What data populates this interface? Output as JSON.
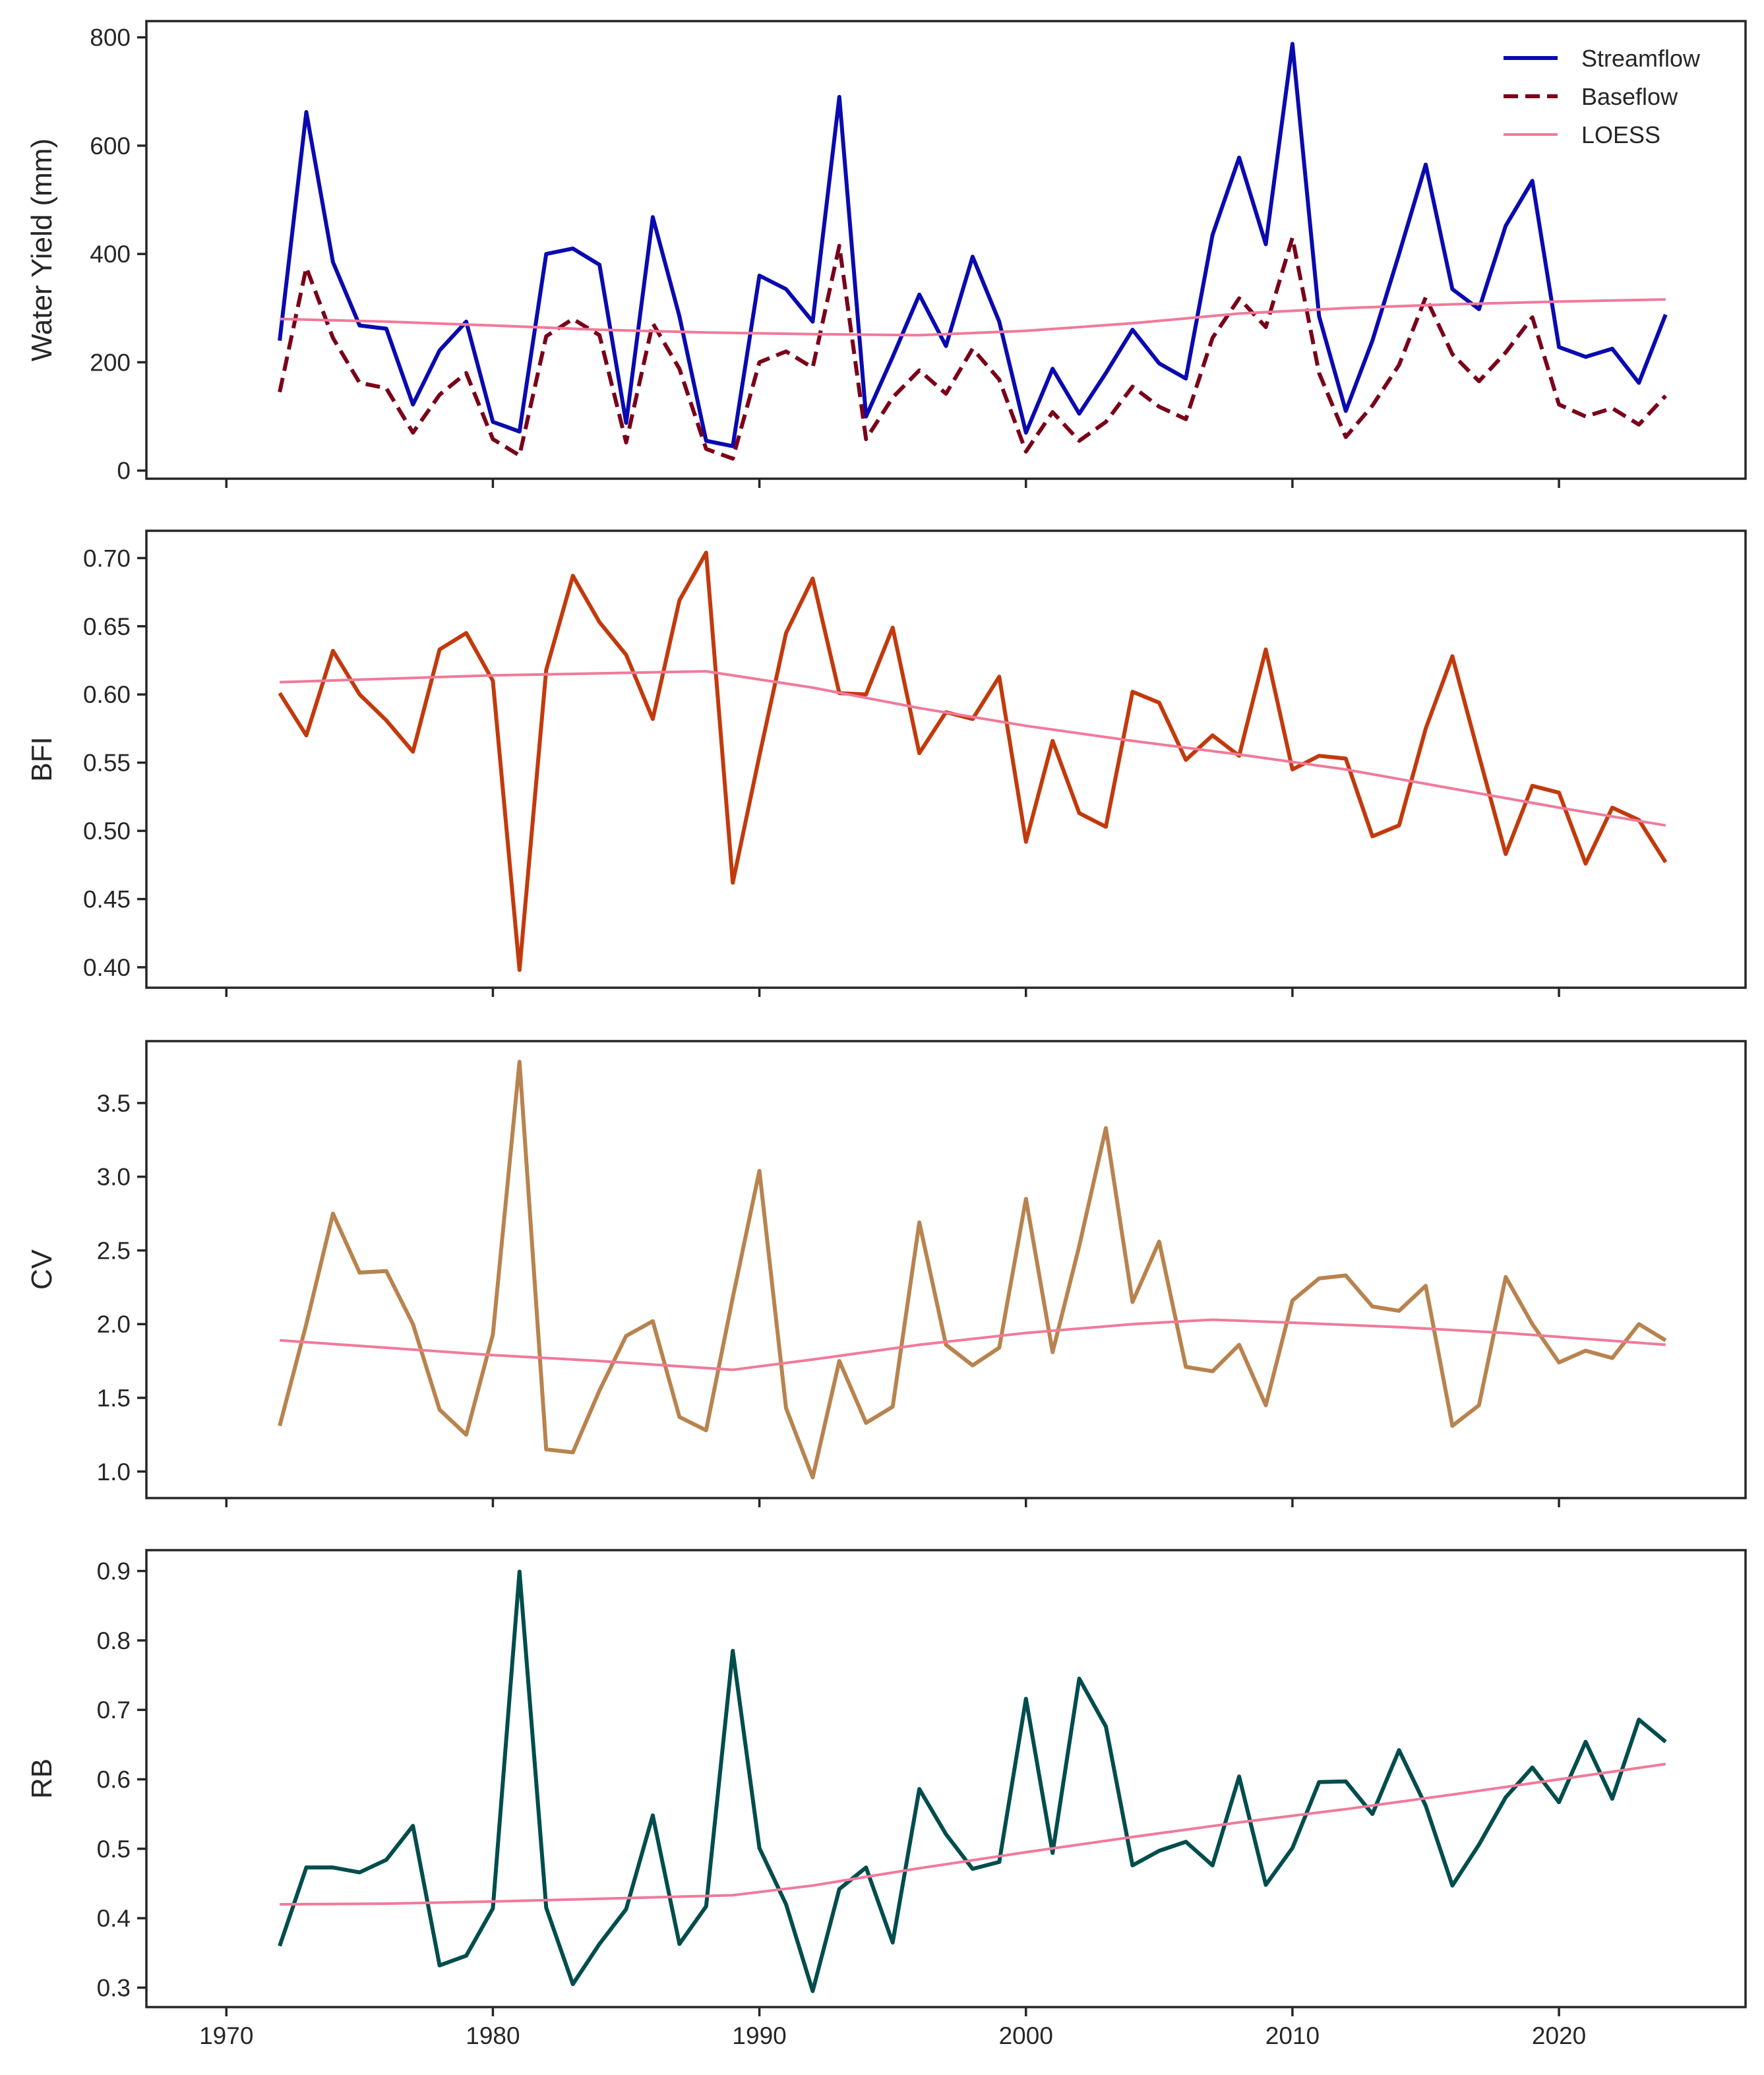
{
  "chart_data": [
    {
      "type": "line",
      "id": "water-yield",
      "ylabel": "Water Yield (mm)",
      "xlim": [
        1967,
        2027
      ],
      "ylim": [
        -15,
        830
      ],
      "yticks": [
        0,
        200,
        400,
        600,
        800
      ],
      "ytick_labels": [
        "0",
        "200",
        "400",
        "600",
        "800"
      ],
      "xticks": [
        1970,
        1980,
        1990,
        2000,
        2010,
        2020
      ],
      "xtick_labels": [
        "",
        "",
        "",
        "",
        "",
        ""
      ],
      "legend_position": "top-right",
      "series": [
        {
          "name": "Streamflow",
          "color": "#0a0ab0",
          "dash": "solid",
          "x": [
            1972,
            1973,
            1974,
            1975,
            1976,
            1977,
            1978,
            1979,
            1980,
            1981,
            1982,
            1983,
            1984,
            1985,
            1986,
            1987,
            1988,
            1989,
            1990,
            1991,
            1992,
            1993,
            1994,
            1995,
            1996,
            1997,
            1998,
            1999,
            2000,
            2001,
            2002,
            2003,
            2004,
            2005,
            2006,
            2007,
            2008,
            2009,
            2010,
            2011,
            2012,
            2013,
            2014,
            2015,
            2016,
            2017,
            2018,
            2019,
            2020,
            2021,
            2022,
            2023,
            2024
          ],
          "values": [
            240,
            662,
            385,
            268,
            262,
            122,
            222,
            275,
            90,
            72,
            400,
            410,
            380,
            88,
            468,
            285,
            55,
            45,
            360,
            335,
            275,
            690,
            100,
            210,
            325,
            230,
            395,
            275,
            70,
            188,
            105,
            180,
            260,
            198,
            170,
            435,
            578,
            418,
            788,
            285,
            110,
            240,
            400,
            565,
            335,
            298,
            452,
            535,
            228,
            210,
            225,
            162,
            288
          ]
        },
        {
          "name": "Baseflow",
          "color": "#7a0019",
          "dash": "dashed",
          "x": [
            1972,
            1973,
            1974,
            1975,
            1976,
            1977,
            1978,
            1979,
            1980,
            1981,
            1982,
            1983,
            1984,
            1985,
            1986,
            1987,
            1988,
            1989,
            1990,
            1991,
            1992,
            1993,
            1994,
            1995,
            1996,
            1997,
            1998,
            1999,
            2000,
            2001,
            2002,
            2003,
            2004,
            2005,
            2006,
            2007,
            2008,
            2009,
            2010,
            2011,
            2012,
            2013,
            2014,
            2015,
            2016,
            2017,
            2018,
            2019,
            2020,
            2021,
            2022,
            2023,
            2024
          ],
          "values": [
            145,
            375,
            245,
            162,
            152,
            70,
            140,
            180,
            58,
            28,
            248,
            280,
            250,
            52,
            272,
            188,
            40,
            22,
            200,
            220,
            190,
            415,
            58,
            135,
            185,
            142,
            225,
            168,
            35,
            108,
            55,
            90,
            155,
            118,
            95,
            245,
            318,
            265,
            430,
            180,
            62,
            120,
            195,
            320,
            215,
            165,
            218,
            283,
            122,
            100,
            115,
            85,
            138
          ]
        },
        {
          "name": "LOESS",
          "color": "#f07a9a",
          "dash": "solid",
          "x": [
            1972,
            1976,
            1980,
            1984,
            1988,
            1992,
            1996,
            2000,
            2004,
            2008,
            2012,
            2016,
            2020,
            2024
          ],
          "values": [
            280,
            275,
            268,
            260,
            255,
            252,
            250,
            258,
            272,
            290,
            300,
            307,
            312,
            316
          ]
        }
      ]
    },
    {
      "type": "line",
      "id": "bfi",
      "ylabel": "BFI",
      "xlim": [
        1967,
        2027
      ],
      "ylim": [
        0.385,
        0.72
      ],
      "yticks": [
        0.4,
        0.45,
        0.5,
        0.55,
        0.6,
        0.65,
        0.7
      ],
      "ytick_labels": [
        "0.40",
        "0.45",
        "0.50",
        "0.55",
        "0.60",
        "0.65",
        "0.70"
      ],
      "xticks": [
        1970,
        1980,
        1990,
        2000,
        2010,
        2020
      ],
      "xtick_labels": [
        "",
        "",
        "",
        "",
        "",
        ""
      ],
      "series": [
        {
          "name": "BFI",
          "color": "#c23a0c",
          "dash": "solid",
          "x": [
            1972,
            1973,
            1974,
            1975,
            1976,
            1977,
            1978,
            1979,
            1980,
            1981,
            1982,
            1983,
            1984,
            1985,
            1986,
            1987,
            1988,
            1989,
            1990,
            1991,
            1992,
            1993,
            1994,
            1995,
            1996,
            1997,
            1998,
            1999,
            2000,
            2001,
            2002,
            2003,
            2004,
            2005,
            2006,
            2007,
            2008,
            2009,
            2010,
            2011,
            2012,
            2013,
            2014,
            2015,
            2016,
            2017,
            2018,
            2019,
            2020,
            2021,
            2022,
            2023,
            2024
          ],
          "values": [
            0.601,
            0.57,
            0.632,
            0.6,
            0.581,
            0.558,
            0.633,
            0.645,
            0.61,
            0.398,
            0.618,
            0.687,
            0.653,
            0.629,
            0.582,
            0.669,
            0.704,
            0.462,
            0.555,
            0.645,
            0.685,
            0.601,
            0.6,
            0.649,
            0.557,
            0.587,
            0.582,
            0.613,
            0.492,
            0.566,
            0.513,
            0.503,
            0.602,
            0.594,
            0.552,
            0.57,
            0.555,
            0.633,
            0.545,
            0.555,
            0.553,
            0.496,
            0.504,
            0.575,
            0.628,
            0.555,
            0.483,
            0.533,
            0.528,
            0.476,
            0.517,
            0.508,
            0.477
          ]
        },
        {
          "name": "LOESS",
          "color": "#f07a9a",
          "dash": "solid",
          "x": [
            1972,
            1980,
            1988,
            1992,
            1996,
            2000,
            2004,
            2008,
            2012,
            2016,
            2020,
            2024
          ],
          "values": [
            0.609,
            0.614,
            0.617,
            0.605,
            0.59,
            0.577,
            0.566,
            0.556,
            0.545,
            0.531,
            0.517,
            0.504
          ]
        }
      ]
    },
    {
      "type": "line",
      "id": "cv",
      "ylabel": "CV",
      "xlim": [
        1967,
        2027
      ],
      "ylim": [
        0.82,
        3.92
      ],
      "yticks": [
        1.0,
        1.5,
        2.0,
        2.5,
        3.0,
        3.5
      ],
      "ytick_labels": [
        "1.0",
        "1.5",
        "2.0",
        "2.5",
        "3.0",
        "3.5"
      ],
      "xticks": [
        1970,
        1980,
        1990,
        2000,
        2010,
        2020
      ],
      "xtick_labels": [
        "",
        "",
        "",
        "",
        "",
        ""
      ],
      "series": [
        {
          "name": "CV",
          "color": "#b8834e",
          "dash": "solid",
          "x": [
            1972,
            1973,
            1974,
            1975,
            1976,
            1977,
            1978,
            1979,
            1980,
            1981,
            1982,
            1983,
            1984,
            1985,
            1986,
            1987,
            1988,
            1989,
            1990,
            1991,
            1992,
            1993,
            1994,
            1995,
            1996,
            1997,
            1998,
            1999,
            2000,
            2001,
            2002,
            2003,
            2004,
            2005,
            2006,
            2007,
            2008,
            2009,
            2010,
            2011,
            2012,
            2013,
            2014,
            2015,
            2016,
            2017,
            2018,
            2019,
            2020,
            2021,
            2022,
            2023,
            2024
          ],
          "values": [
            1.31,
            2.0,
            2.75,
            2.35,
            2.36,
            2.0,
            1.42,
            1.25,
            1.93,
            3.78,
            1.15,
            1.13,
            1.55,
            1.92,
            2.02,
            1.37,
            1.28,
            2.18,
            3.04,
            1.43,
            0.96,
            1.75,
            1.33,
            1.44,
            2.69,
            1.86,
            1.72,
            1.84,
            2.85,
            1.81,
            2.53,
            3.33,
            2.15,
            2.56,
            1.71,
            1.68,
            1.86,
            1.45,
            2.16,
            2.31,
            2.33,
            2.12,
            2.09,
            2.26,
            1.31,
            1.45,
            2.32,
            2.0,
            1.74,
            1.82,
            1.77,
            2.0,
            1.89
          ]
        },
        {
          "name": "LOESS",
          "color": "#f07a9a",
          "dash": "solid",
          "x": [
            1972,
            1976,
            1980,
            1984,
            1989,
            1992,
            1996,
            2000,
            2004,
            2007,
            2010,
            2014,
            2018,
            2024
          ],
          "values": [
            1.89,
            1.84,
            1.79,
            1.75,
            1.69,
            1.76,
            1.86,
            1.94,
            2.0,
            2.03,
            2.01,
            1.98,
            1.94,
            1.86
          ]
        }
      ]
    },
    {
      "type": "line",
      "id": "rb",
      "ylabel": "RB",
      "xlim": [
        1967,
        2027
      ],
      "ylim": [
        0.272,
        0.93
      ],
      "yticks": [
        0.3,
        0.4,
        0.5,
        0.6,
        0.7,
        0.8,
        0.9
      ],
      "ytick_labels": [
        "0.3",
        "0.4",
        "0.5",
        "0.6",
        "0.7",
        "0.8",
        "0.9"
      ],
      "xticks": [
        1970,
        1980,
        1990,
        2000,
        2010,
        2020
      ],
      "xtick_labels": [
        "1970",
        "1980",
        "1990",
        "2000",
        "2010",
        "2020"
      ],
      "series": [
        {
          "name": "RB",
          "color": "#004d4d",
          "dash": "solid",
          "x": [
            1972,
            1973,
            1974,
            1975,
            1976,
            1977,
            1978,
            1979,
            1980,
            1981,
            1982,
            1983,
            1984,
            1985,
            1986,
            1987,
            1988,
            1989,
            1990,
            1991,
            1992,
            1993,
            1994,
            1995,
            1996,
            1997,
            1998,
            1999,
            2000,
            2001,
            2002,
            2003,
            2004,
            2005,
            2006,
            2007,
            2008,
            2009,
            2010,
            2011,
            2012,
            2013,
            2014,
            2015,
            2016,
            2017,
            2018,
            2019,
            2020,
            2021,
            2022,
            2023,
            2024
          ],
          "values": [
            0.36,
            0.473,
            0.473,
            0.466,
            0.484,
            0.533,
            0.332,
            0.346,
            0.414,
            0.899,
            0.415,
            0.305,
            0.363,
            0.413,
            0.548,
            0.363,
            0.417,
            0.785,
            0.501,
            0.42,
            0.295,
            0.442,
            0.473,
            0.365,
            0.586,
            0.521,
            0.471,
            0.481,
            0.716,
            0.494,
            0.745,
            0.676,
            0.476,
            0.497,
            0.51,
            0.476,
            0.604,
            0.448,
            0.501,
            0.596,
            0.597,
            0.55,
            0.642,
            0.562,
            0.447,
            0.506,
            0.574,
            0.617,
            0.567,
            0.654,
            0.572,
            0.686,
            0.654
          ]
        },
        {
          "name": "LOESS",
          "color": "#f07a9a",
          "dash": "solid",
          "x": [
            1972,
            1976,
            1980,
            1984,
            1989,
            1992,
            1996,
            2000,
            2004,
            2008,
            2012,
            2016,
            2020,
            2024
          ],
          "values": [
            0.42,
            0.421,
            0.424,
            0.428,
            0.433,
            0.447,
            0.472,
            0.495,
            0.517,
            0.538,
            0.557,
            0.578,
            0.6,
            0.622
          ]
        }
      ]
    }
  ]
}
